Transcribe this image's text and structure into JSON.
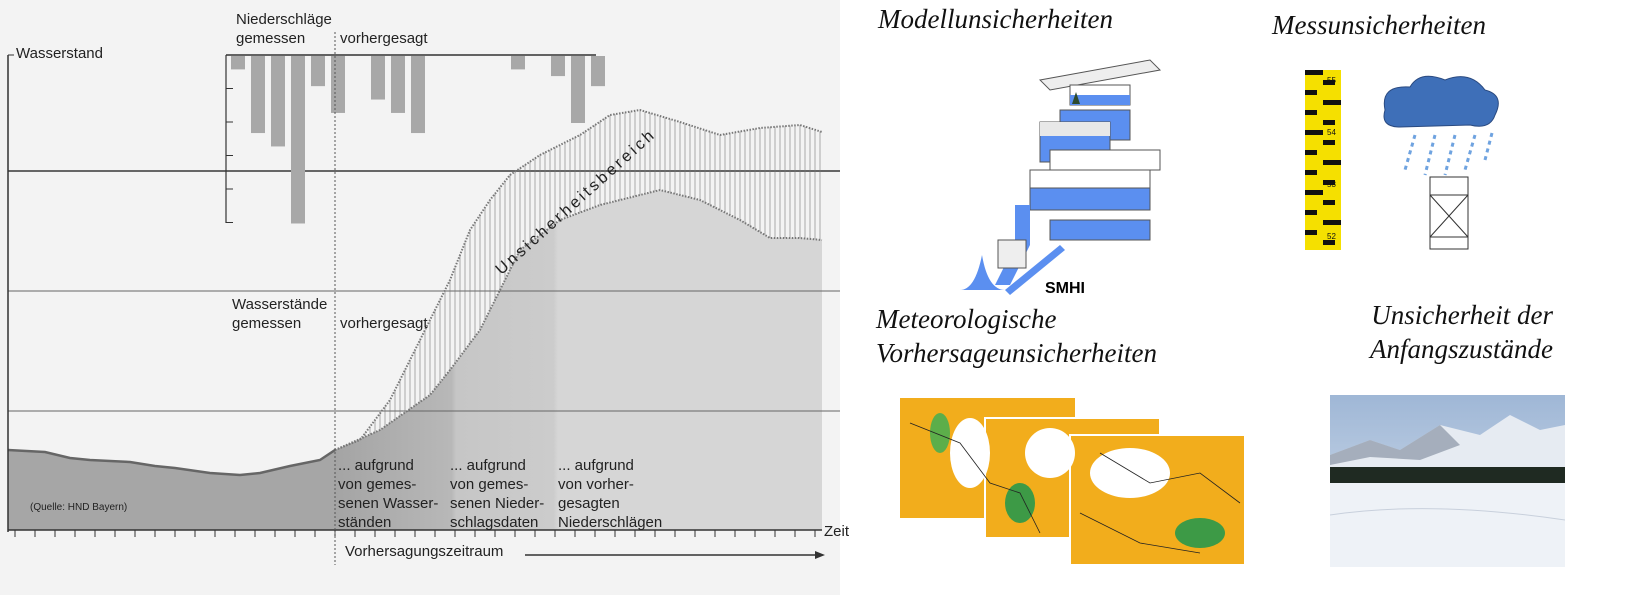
{
  "diagram": {
    "y_axis_label": "Wasserstand",
    "x_axis_label": "Zeit",
    "forecast_period_label": "Vorhersagungszeitraum",
    "precip_label_measured": "Niederschläge\ngemessen",
    "precip_label_forecast": "vorhergesagt",
    "water_label_measured": "Wasserstände\ngemessen",
    "water_label_forecast": "vorhergesagt",
    "uncertainty_label": "Unsicherheitsbereich",
    "basis_1": "... aufgrund\nvon gemes-\nsenen Wasser-\nständen",
    "basis_2": "... aufgrund\nvon gemes-\nsenen Nieder-\nschlagsdaten",
    "basis_3": "... aufgrund\nvon vorher-\ngesagten\nNiederschlägen",
    "source": "(Quelle: HND Bayern)",
    "precipitation_bars": [
      0.4,
      2.3,
      2.7,
      5.0,
      0.9,
      1.7,
      0,
      1.3,
      1.7,
      2.3,
      0,
      0,
      0,
      0,
      0.4,
      0,
      0.6,
      2.0,
      0.9
    ],
    "colors": {
      "measured_fill": "#a6a6a6",
      "forecast_fill": "#d9d9d9",
      "bars": "#a8a8a8",
      "background": "#f3f3f3"
    }
  },
  "panels": {
    "model": {
      "title": "Modellunsicherheiten",
      "logo": "SMHI"
    },
    "measurement": {
      "title": "Messunsicherheiten",
      "gauge_marks": [
        "55",
        "54",
        "53",
        "52"
      ]
    },
    "meteo": {
      "title": "Meteorologische\nVorhersageunsicherheiten"
    },
    "initial": {
      "title": "Unsicherheit der\nAnfangszustände"
    }
  }
}
